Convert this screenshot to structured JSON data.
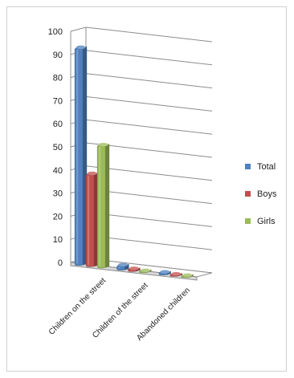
{
  "chart_data": {
    "type": "bar",
    "categories": [
      "Children on the street",
      "Children of the street",
      "Abandoned children"
    ],
    "series": [
      {
        "name": "Total",
        "values": [
          94,
          2,
          1
        ],
        "color": "#4f81bd"
      },
      {
        "name": "Boys",
        "values": [
          40,
          1,
          0.5
        ],
        "color": "#c0504d"
      },
      {
        "name": "Girls",
        "values": [
          53,
          0.5,
          0.5
        ],
        "color": "#9bbb59"
      }
    ],
    "title": "",
    "xlabel": "",
    "ylabel": "",
    "ylim": [
      0,
      100
    ],
    "yticks": [
      "0",
      "10",
      "20",
      "30",
      "40",
      "50",
      "60",
      "70",
      "80",
      "90",
      "100"
    ],
    "grid": true,
    "legend_position": "right"
  }
}
